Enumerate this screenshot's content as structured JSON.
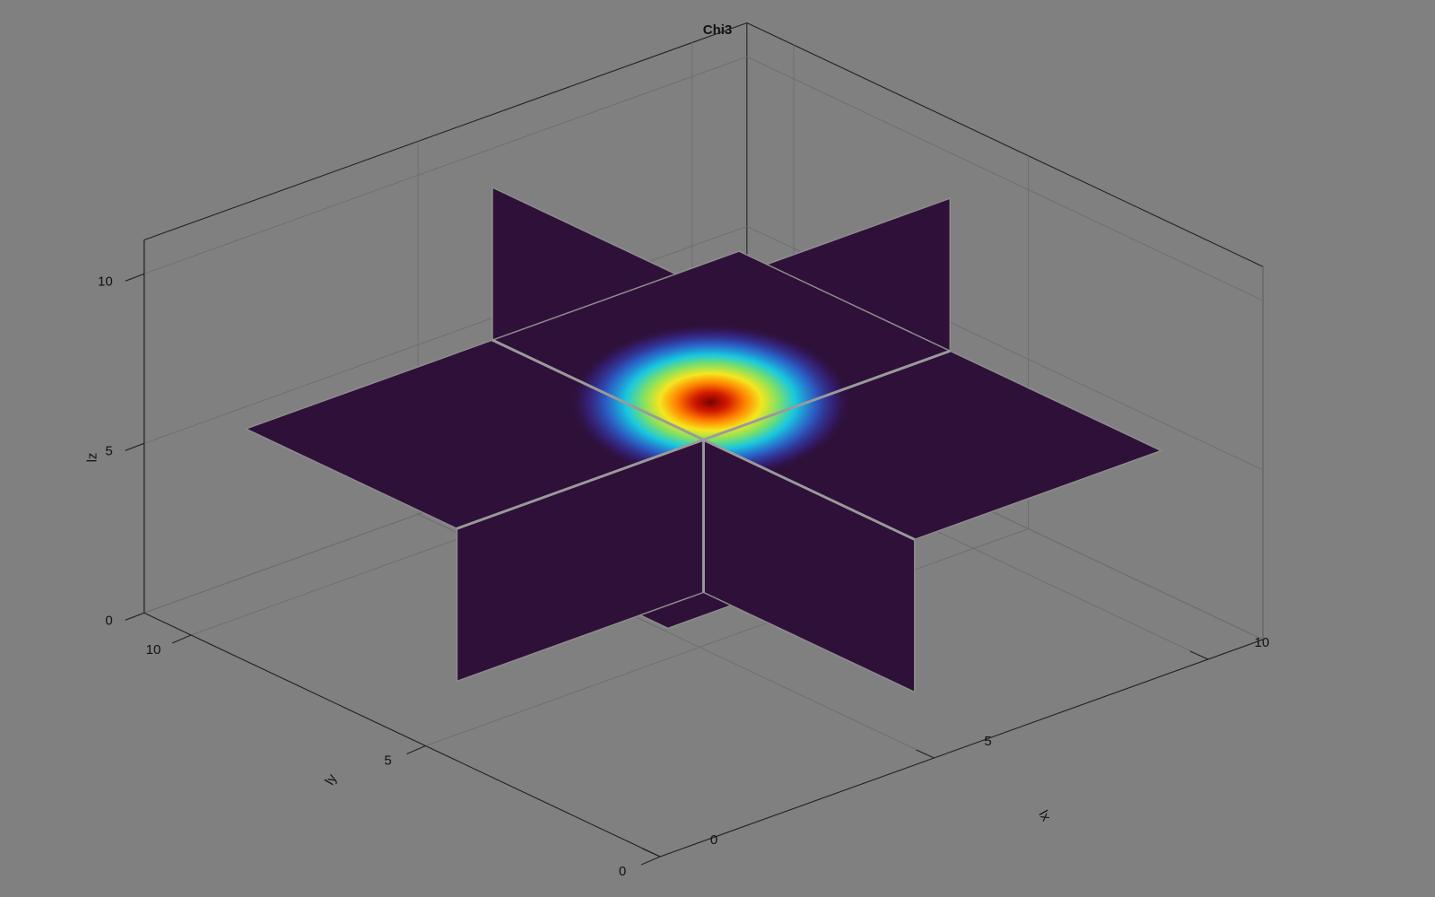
{
  "chart_data": {
    "type": "heatmap",
    "subtype": "3d-orthogonal-slices",
    "title": "Chi3",
    "xlabel": "lx",
    "ylabel": "ly",
    "zlabel": "lz",
    "xlim": [
      0,
      11
    ],
    "ylim": [
      0,
      11
    ],
    "zlim": [
      0,
      11
    ],
    "x_ticks": [
      0,
      5,
      10
    ],
    "y_ticks": [
      0,
      5,
      10
    ],
    "z_ticks": [
      0,
      5,
      10
    ],
    "x_tick_labels": [
      "0",
      "5",
      "10"
    ],
    "y_tick_labels": [
      "0",
      "5",
      "10"
    ],
    "z_tick_labels": [
      "0",
      "5",
      "10"
    ],
    "slices": {
      "x": 5.5,
      "y": 5.5,
      "z": 5.5
    },
    "slice_extent": [
      1,
      10
    ],
    "peak": {
      "x": 6.4,
      "y": 6.4,
      "value": 1.0
    },
    "colormap": "jet",
    "background_color": "#808080",
    "low_value_color": "#2e1039",
    "grid": true
  }
}
